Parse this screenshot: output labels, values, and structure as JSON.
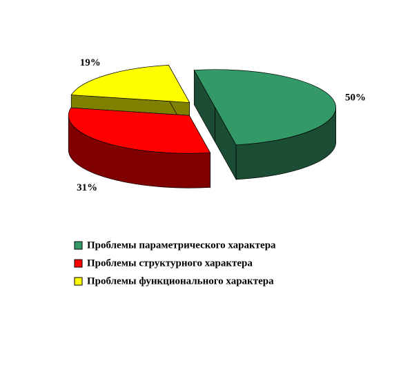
{
  "chart_data": {
    "type": "pie3d",
    "categories": [
      "Проблемы параметрического характера",
      "Проблемы структурного характера",
      "Проблемы функционального характера"
    ],
    "values": [
      50,
      31,
      19
    ],
    "value_labels": [
      "50%",
      "31%",
      "19%"
    ],
    "colors": [
      "#339966",
      "#ff0000",
      "#ffff00"
    ],
    "legend": "bottom"
  }
}
